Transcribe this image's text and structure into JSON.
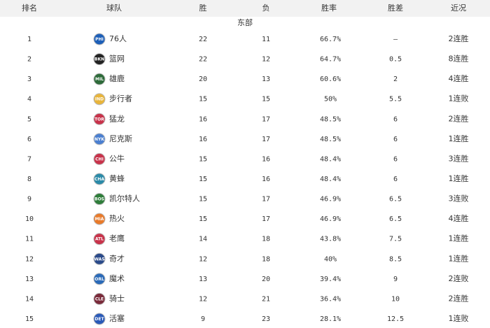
{
  "table": {
    "columns": [
      "排名",
      "球队",
      "胜",
      "负",
      "胜率",
      "胜差",
      "近况"
    ],
    "section": "东部",
    "rows": [
      {
        "rank": "1",
        "logo": "PHI",
        "color": "#1d5fb8",
        "team": "76人",
        "w": "22",
        "l": "11",
        "pct": "66.7%",
        "gb": "–",
        "streak": "2连胜"
      },
      {
        "rank": "2",
        "logo": "BKN",
        "color": "#222222",
        "team": "篮网",
        "w": "22",
        "l": "12",
        "pct": "64.7%",
        "gb": "0.5",
        "streak": "8连胜"
      },
      {
        "rank": "3",
        "logo": "MIL",
        "color": "#2e6b3a",
        "team": "雄鹿",
        "w": "20",
        "l": "13",
        "pct": "60.6%",
        "gb": "2",
        "streak": "4连胜"
      },
      {
        "rank": "4",
        "logo": "IND",
        "color": "#e8b43a",
        "team": "步行者",
        "w": "15",
        "l": "15",
        "pct": "50%",
        "gb": "5.5",
        "streak": "1连败"
      },
      {
        "rank": "5",
        "logo": "TOR",
        "color": "#c8324a",
        "team": "猛龙",
        "w": "16",
        "l": "17",
        "pct": "48.5%",
        "gb": "6",
        "streak": "2连胜"
      },
      {
        "rank": "6",
        "logo": "NYK",
        "color": "#4a7fd0",
        "team": "尼克斯",
        "w": "16",
        "l": "17",
        "pct": "48.5%",
        "gb": "6",
        "streak": "1连胜"
      },
      {
        "rank": "7",
        "logo": "CHI",
        "color": "#c8324a",
        "team": "公牛",
        "w": "15",
        "l": "16",
        "pct": "48.4%",
        "gb": "6",
        "streak": "3连胜"
      },
      {
        "rank": "8",
        "logo": "CHA",
        "color": "#2a8aa8",
        "team": "黄蜂",
        "w": "15",
        "l": "16",
        "pct": "48.4%",
        "gb": "6",
        "streak": "1连胜"
      },
      {
        "rank": "9",
        "logo": "BOS",
        "color": "#2e7d3a",
        "team": "凯尔特人",
        "w": "15",
        "l": "17",
        "pct": "46.9%",
        "gb": "6.5",
        "streak": "3连败"
      },
      {
        "rank": "10",
        "logo": "MIA",
        "color": "#e87a2a",
        "team": "热火",
        "w": "15",
        "l": "17",
        "pct": "46.9%",
        "gb": "6.5",
        "streak": "4连胜"
      },
      {
        "rank": "11",
        "logo": "ATL",
        "color": "#c8324a",
        "team": "老鹰",
        "w": "14",
        "l": "18",
        "pct": "43.8%",
        "gb": "7.5",
        "streak": "1连胜"
      },
      {
        "rank": "12",
        "logo": "WAS",
        "color": "#2a4a8a",
        "team": "奇才",
        "w": "12",
        "l": "18",
        "pct": "40%",
        "gb": "8.5",
        "streak": "1连胜"
      },
      {
        "rank": "13",
        "logo": "ORL",
        "color": "#2a6ab8",
        "team": "魔术",
        "w": "13",
        "l": "20",
        "pct": "39.4%",
        "gb": "9",
        "streak": "2连败"
      },
      {
        "rank": "14",
        "logo": "CLE",
        "color": "#7a2a3a",
        "team": "骑士",
        "w": "12",
        "l": "21",
        "pct": "36.4%",
        "gb": "10",
        "streak": "2连胜"
      },
      {
        "rank": "15",
        "logo": "DET",
        "color": "#2a5ab8",
        "team": "活塞",
        "w": "9",
        "l": "23",
        "pct": "28.1%",
        "gb": "12.5",
        "streak": "1连败"
      }
    ]
  }
}
